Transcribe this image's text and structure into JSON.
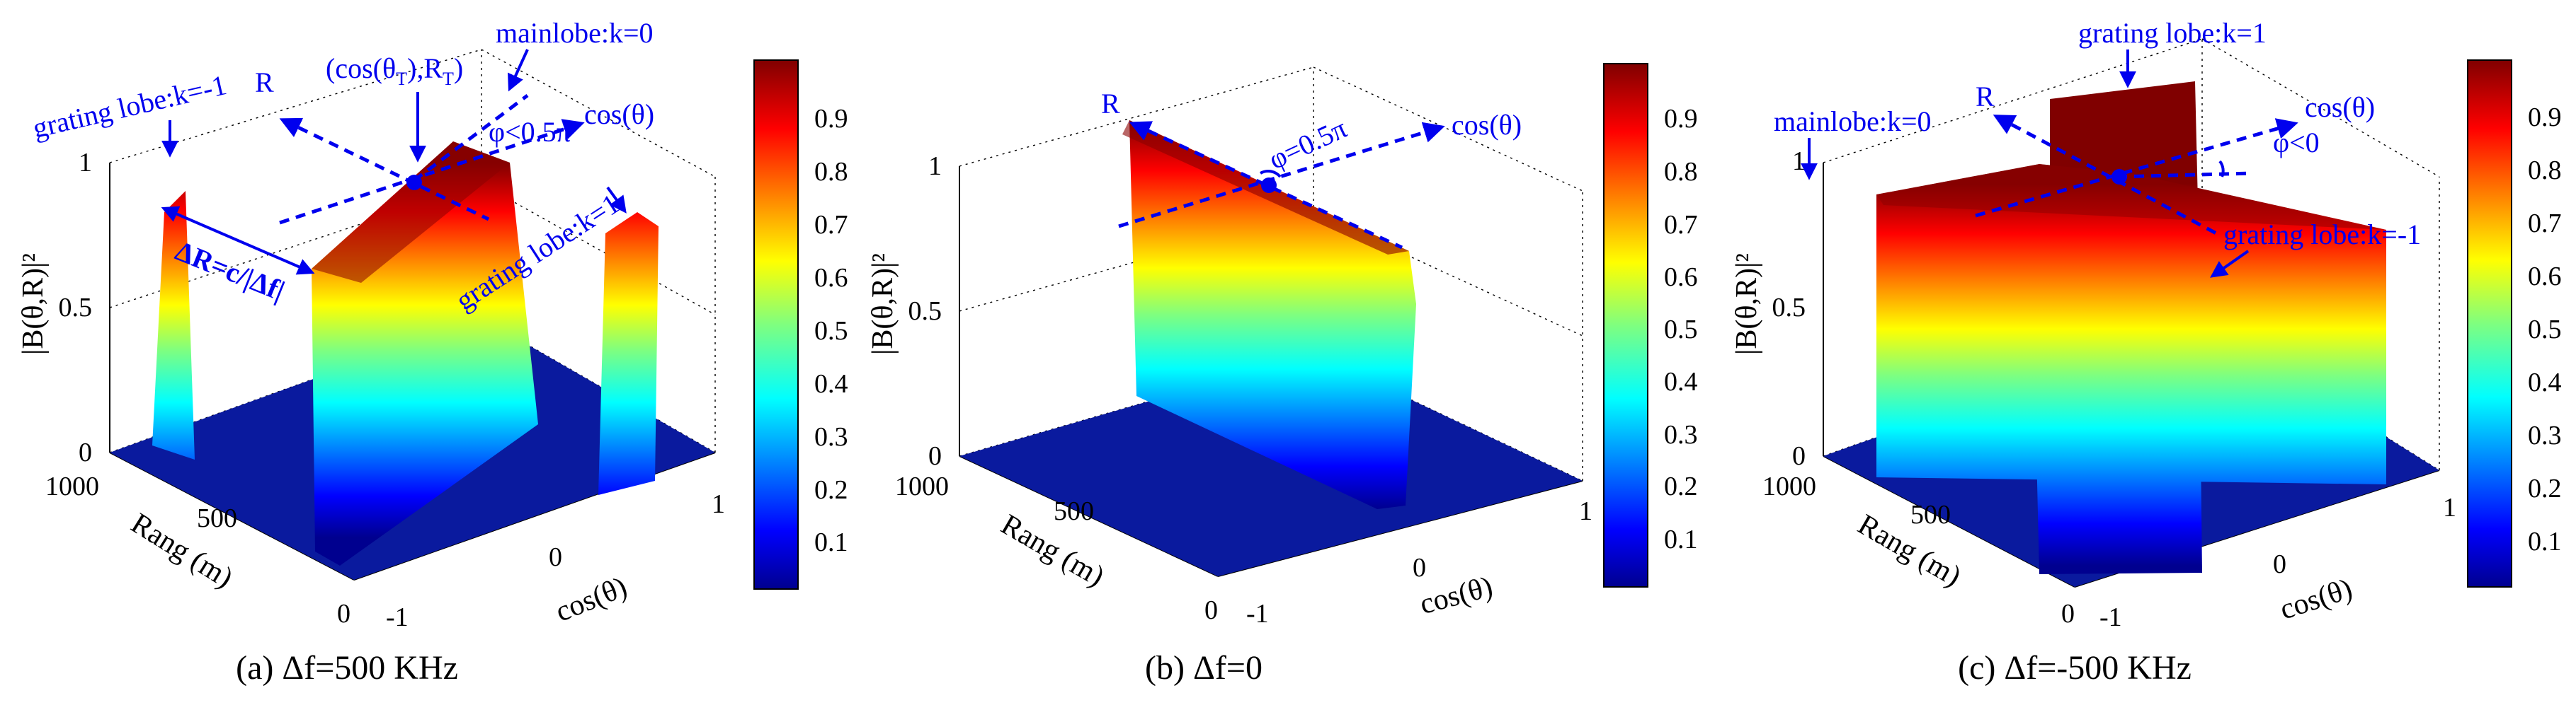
{
  "chart_data": [
    {
      "type": "surface",
      "panel_id": "a",
      "caption": "(a) Δf=500 KHz",
      "zlabel": "|B(θ,R)|²",
      "xlabel": "cos(θ)",
      "ylabel": "Rang (m)",
      "x_ticks": [
        "-1",
        "0",
        "1"
      ],
      "y_ticks": [
        "0",
        "500",
        "1000"
      ],
      "z_ticks": [
        "0",
        "0.5",
        "1"
      ],
      "zlim": [
        0,
        1
      ],
      "colorbar": {
        "ticks": [
          "0.1",
          "0.2",
          "0.3",
          "0.4",
          "0.5",
          "0.6",
          "0.7",
          "0.8",
          "0.9"
        ],
        "range": [
          0,
          1
        ]
      },
      "lobes": [
        {
          "name": "mainlobe",
          "k": 0,
          "peak": 1
        },
        {
          "name": "grating lobe",
          "k": -1,
          "peak": 1
        },
        {
          "name": "grating lobe",
          "k": 1,
          "peak": 1
        }
      ],
      "annotations": {
        "mainlobe": "mainlobe:k=0",
        "grating_left": "grating lobe:k=-1",
        "grating_right": "grating lobe:k=1",
        "point_prefix": "(cos(θ",
        "point_sub1": "T",
        "point_mid": "),R",
        "point_sub2": "T",
        "point_suffix": ")",
        "r_axis": "R",
        "cos_axis": "cos(θ)",
        "angle": "φ<0.5π",
        "delta_r": "ΔR=c/|Δf|"
      }
    },
    {
      "type": "surface",
      "panel_id": "b",
      "caption": "(b) Δf=0",
      "zlabel": "|B(θ,R)|²",
      "xlabel": "cos(θ)",
      "ylabel": "Rang (m)",
      "x_ticks": [
        "-1",
        "0",
        "1"
      ],
      "y_ticks": [
        "0",
        "500",
        "1000"
      ],
      "z_ticks": [
        "0",
        "0.5",
        "1"
      ],
      "zlim": [
        0,
        1
      ],
      "colorbar": {
        "ticks": [
          "0.1",
          "0.2",
          "0.3",
          "0.4",
          "0.5",
          "0.6",
          "0.7",
          "0.8",
          "0.9"
        ],
        "range": [
          0,
          1
        ]
      },
      "lobes": [
        {
          "name": "mainlobe",
          "k": 0,
          "peak": 1
        }
      ],
      "annotations": {
        "r_axis": "R",
        "cos_axis": "cos(θ)",
        "angle": "φ=0.5π"
      }
    },
    {
      "type": "surface",
      "panel_id": "c",
      "caption": "(c) Δf=-500 KHz",
      "zlabel": "|B(θ,R)|²",
      "xlabel": "cos(θ)",
      "ylabel": "Rang (m)",
      "x_ticks": [
        "-1",
        "0",
        "1"
      ],
      "y_ticks": [
        "0",
        "500",
        "1000"
      ],
      "z_ticks": [
        "0",
        "0.5",
        "1"
      ],
      "zlim": [
        0,
        1
      ],
      "colorbar": {
        "ticks": [
          "0.1",
          "0.2",
          "0.3",
          "0.4",
          "0.5",
          "0.6",
          "0.7",
          "0.8",
          "0.9"
        ],
        "range": [
          0,
          1
        ]
      },
      "lobes": [
        {
          "name": "mainlobe",
          "k": 0,
          "peak": 1
        },
        {
          "name": "grating lobe",
          "k": 1,
          "peak": 1
        },
        {
          "name": "grating lobe",
          "k": -1,
          "peak": 1
        }
      ],
      "annotations": {
        "mainlobe": "mainlobe:k=0",
        "grating_top": "grating lobe:k=1",
        "grating_right": "grating lobe:k=-1",
        "r_axis": "R",
        "cos_axis": "cos(θ)",
        "angle": "φ<0"
      }
    }
  ]
}
